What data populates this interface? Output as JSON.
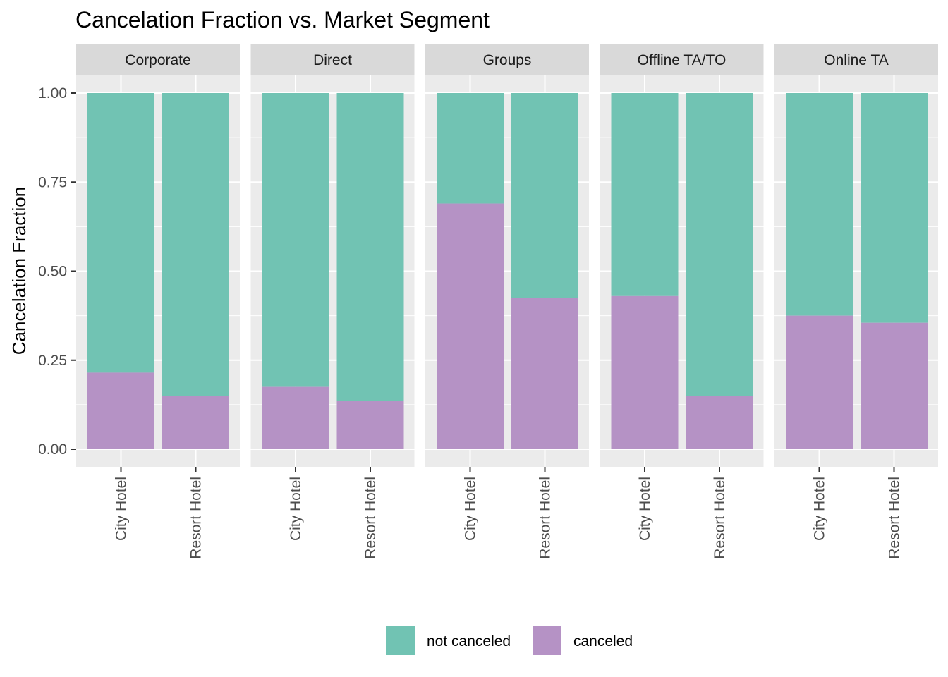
{
  "chart_data": {
    "type": "bar",
    "stacked": true,
    "normalized": true,
    "title": "Cancelation Fraction vs. Market Segment",
    "xlabel": "",
    "ylabel": "Cancelation Fraction",
    "ylim": [
      0,
      1
    ],
    "yticks": [
      "0.00",
      "0.25",
      "0.50",
      "0.75",
      "1.00"
    ],
    "ytick_values": [
      0,
      0.25,
      0.5,
      0.75,
      1.0
    ],
    "grid": true,
    "legend_position": "bottom",
    "facets": [
      "Corporate",
      "Direct",
      "Groups",
      "Offline TA/TO",
      "Online TA"
    ],
    "categories": [
      "City Hotel",
      "Resort Hotel"
    ],
    "series": [
      {
        "name": "not canceled",
        "color": "#71C3B3",
        "values": [
          [
            0.785,
            0.85
          ],
          [
            0.825,
            0.865
          ],
          [
            0.31,
            0.575
          ],
          [
            0.57,
            0.85
          ],
          [
            0.625,
            0.645
          ]
        ]
      },
      {
        "name": "canceled",
        "color": "#B592C5",
        "values": [
          [
            0.215,
            0.15
          ],
          [
            0.175,
            0.135
          ],
          [
            0.69,
            0.425
          ],
          [
            0.43,
            0.15
          ],
          [
            0.375,
            0.355
          ]
        ]
      }
    ]
  }
}
